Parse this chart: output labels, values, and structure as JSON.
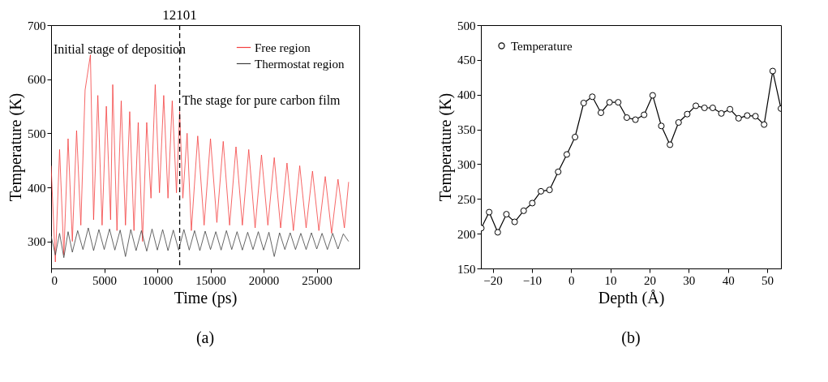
{
  "chart_data": [
    {
      "type": "line",
      "title": "(a)",
      "xlabel": "Time (ps)",
      "ylabel": "Temperature (K)",
      "xlim": [
        0,
        29000
      ],
      "xticks": [
        0,
        5000,
        10000,
        15000,
        20000,
        25000
      ],
      "ylim": [
        250,
        700
      ],
      "yticks": [
        300,
        400,
        500,
        600,
        700
      ],
      "legend": "top right",
      "marker": "none",
      "line_style": "solid",
      "series": [
        {
          "name": "Free region",
          "color": "#f44040",
          "x": [
            0,
            400,
            800,
            1200,
            1600,
            2000,
            2400,
            2800,
            3200,
            3700,
            4000,
            4400,
            4800,
            5200,
            5600,
            5800,
            6200,
            6600,
            7000,
            7400,
            7800,
            8200,
            8600,
            9000,
            9400,
            9800,
            10200,
            10600,
            11000,
            11400,
            11800,
            12100,
            12400,
            12800,
            13200,
            13800,
            14400,
            15000,
            15600,
            16200,
            16800,
            17400,
            18000,
            18600,
            19200,
            19800,
            20400,
            21000,
            21600,
            22200,
            22800,
            23400,
            24000,
            24600,
            25200,
            25800,
            26400,
            27000,
            27600,
            28000
          ],
          "values": [
            440,
            262,
            470,
            275,
            490,
            300,
            505,
            330,
            580,
            645,
            340,
            570,
            330,
            550,
            340,
            590,
            320,
            560,
            330,
            540,
            320,
            520,
            300,
            520,
            380,
            590,
            390,
            570,
            380,
            560,
            390,
            540,
            380,
            500,
            320,
            495,
            330,
            490,
            335,
            485,
            330,
            475,
            330,
            470,
            325,
            460,
            330,
            455,
            325,
            445,
            320,
            440,
            325,
            430,
            320,
            420,
            315,
            415,
            325,
            410
          ]
        },
        {
          "name": "Thermostat region",
          "color": "#404040",
          "type": "line",
          "x": [
            0,
            400,
            800,
            1200,
            1600,
            2000,
            2500,
            3000,
            3500,
            4000,
            4500,
            5000,
            5500,
            6000,
            6500,
            7000,
            7500,
            8000,
            8500,
            9000,
            9500,
            10000,
            10500,
            11000,
            11500,
            12000,
            12500,
            13000,
            13500,
            14000,
            14500,
            15000,
            15500,
            16000,
            16500,
            17000,
            17500,
            18000,
            18500,
            19000,
            19500,
            20000,
            20500,
            21000,
            21500,
            22000,
            22500,
            23000,
            23500,
            24000,
            24500,
            25000,
            25500,
            26000,
            26500,
            27000,
            27500,
            28000
          ],
          "values": [
            310,
            275,
            315,
            270,
            318,
            280,
            320,
            285,
            325,
            283,
            322,
            285,
            323,
            284,
            321,
            272,
            322,
            283,
            320,
            282,
            323,
            284,
            322,
            283,
            321,
            284,
            322,
            284,
            320,
            283,
            319,
            285,
            318,
            284,
            320,
            285,
            318,
            284,
            317,
            285,
            318,
            284,
            317,
            272,
            316,
            285,
            316,
            285,
            315,
            285,
            316,
            286,
            315,
            285,
            315,
            286,
            314,
            300
          ]
        }
      ],
      "ref_lines": [
        {
          "axis": "x",
          "value": 12101,
          "label": "12101",
          "color": "#000000",
          "line_style": "dashed"
        }
      ],
      "annotations": [
        "Initial stage of deposition",
        "The stage for pure carbon film"
      ]
    },
    {
      "type": "line",
      "title": "(b)",
      "xlabel": "Depth (Å)",
      "ylabel": "Temperature (K)",
      "xlim": [
        -23,
        53.5
      ],
      "xticks": [
        -20,
        -10,
        0,
        10,
        20,
        30,
        40,
        50
      ],
      "ylim": [
        150,
        500
      ],
      "yticks": [
        150,
        200,
        250,
        300,
        350,
        400,
        450,
        500
      ],
      "legend": "top left",
      "marker": "circle",
      "line_style": "solid",
      "x": [
        -22.9,
        -20.9,
        -18.7,
        -16.5,
        -14.4,
        -12.1,
        -9.9,
        -7.7,
        -5.5,
        -3.3,
        -1.1,
        1.0,
        3.2,
        5.4,
        7.6,
        9.8,
        12.0,
        14.2,
        16.4,
        18.6,
        20.8,
        23.0,
        25.2,
        27.4,
        29.6,
        31.8,
        34.0,
        36.1,
        38.3,
        40.5,
        42.7,
        44.9,
        47.0,
        49.2,
        51.4,
        53.5
      ],
      "series": [
        {
          "name": "Temperature",
          "color": "#000000",
          "values": [
            208,
            231,
            202,
            228,
            217,
            233,
            244,
            261,
            263,
            289,
            314,
            339,
            388,
            397,
            374,
            389,
            389,
            367,
            364,
            371,
            399,
            355,
            328,
            360,
            372,
            384,
            381,
            381,
            373,
            379,
            366,
            370,
            369,
            357,
            434,
            380
          ]
        }
      ]
    }
  ]
}
